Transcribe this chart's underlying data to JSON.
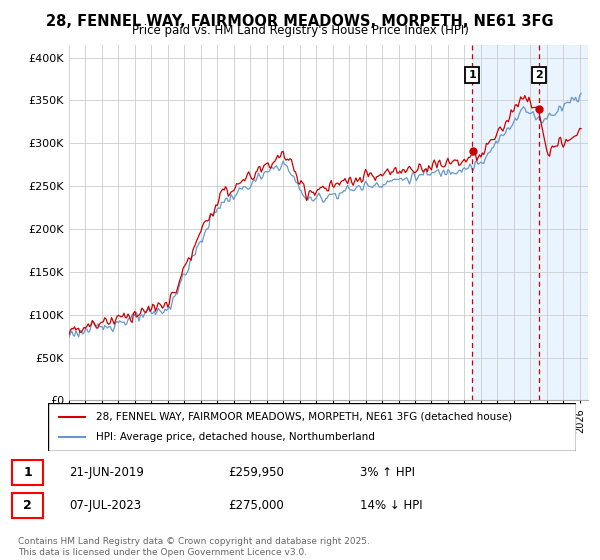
{
  "title_line1": "28, FENNEL WAY, FAIRMOOR MEADOWS, MORPETH, NE61 3FG",
  "title_line2": "Price paid vs. HM Land Registry's House Price Index (HPI)",
  "ylabel_ticks": [
    "£0",
    "£50K",
    "£100K",
    "£150K",
    "£200K",
    "£250K",
    "£300K",
    "£350K",
    "£400K"
  ],
  "ytick_values": [
    0,
    50000,
    100000,
    150000,
    200000,
    250000,
    300000,
    350000,
    400000
  ],
  "ylim": [
    0,
    415000
  ],
  "xlim_start": 1995.0,
  "xlim_end": 2026.5,
  "hpi_color": "#6699cc",
  "price_color": "#cc0000",
  "shade_color": "#ddeeff",
  "marker1_date": 2019.47,
  "marker2_date": 2023.52,
  "legend_line1": "28, FENNEL WAY, FAIRMOOR MEADOWS, MORPETH, NE61 3FG (detached house)",
  "legend_line2": "HPI: Average price, detached house, Northumberland",
  "footnote": "Contains HM Land Registry data © Crown copyright and database right 2025.\nThis data is licensed under the Open Government Licence v3.0.",
  "background_color": "#ffffff",
  "grid_color": "#cccccc",
  "table_row1": [
    "1",
    "21-JUN-2019",
    "£259,950",
    "3% ↑ HPI"
  ],
  "table_row2": [
    "2",
    "07-JUL-2023",
    "£275,000",
    "14% ↓ HPI"
  ]
}
